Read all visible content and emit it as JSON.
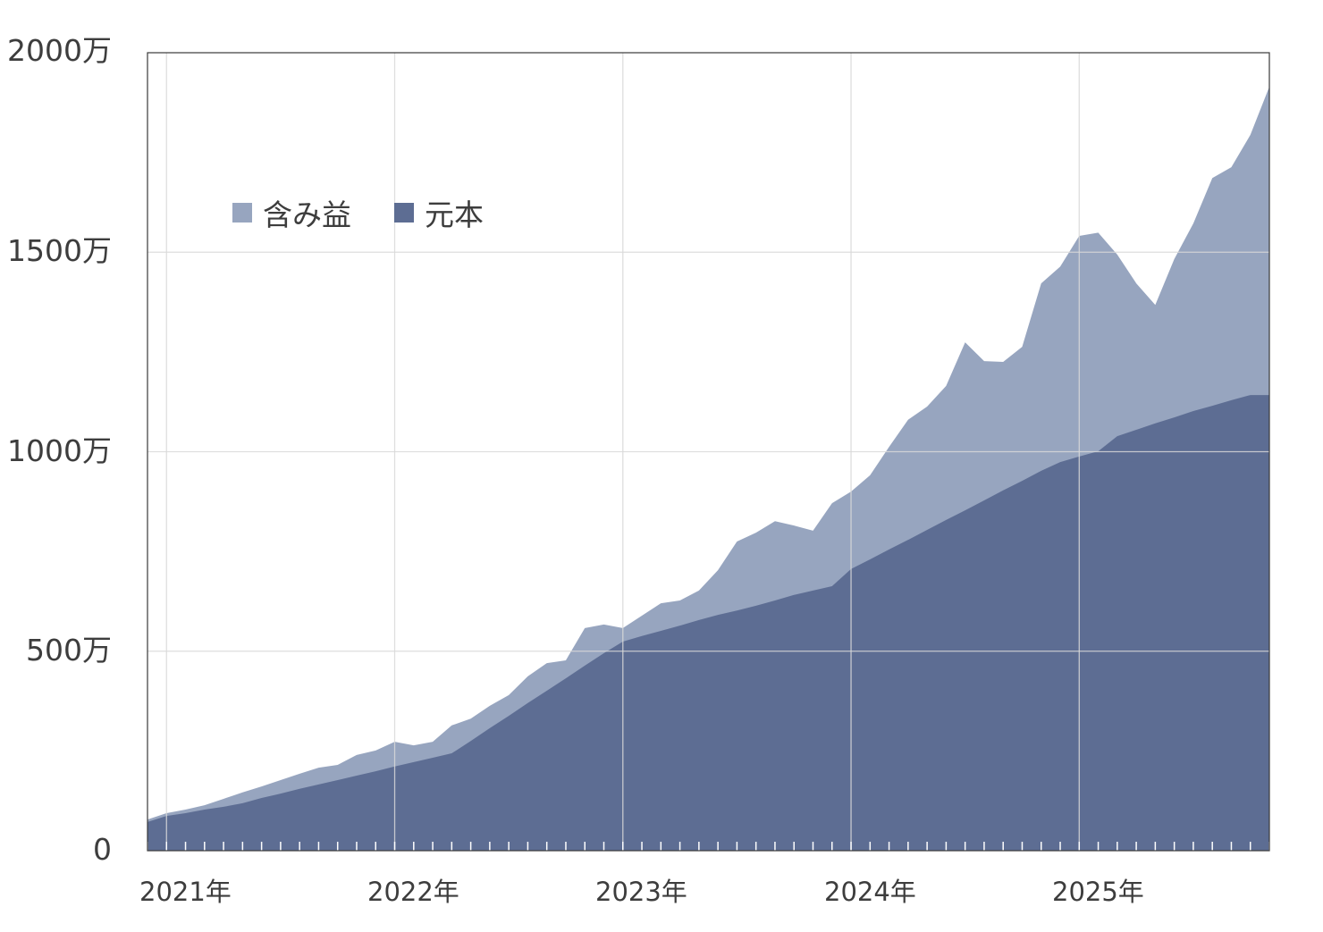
{
  "chart_data": {
    "type": "area",
    "stacked": true,
    "title": "",
    "xlabel": "",
    "ylabel": "",
    "ylim": [
      0,
      2000
    ],
    "y_unit": "万",
    "yticks": [
      {
        "value": 0,
        "label": "0"
      },
      {
        "value": 500,
        "label": "500万"
      },
      {
        "value": 1000,
        "label": "1000万"
      },
      {
        "value": 1500,
        "label": "1500万"
      },
      {
        "value": 2000,
        "label": "2000万"
      }
    ],
    "xticks": [
      {
        "index": 1,
        "label": "2021年"
      },
      {
        "index": 13,
        "label": "2022年"
      },
      {
        "index": 25,
        "label": "2023年"
      },
      {
        "index": 37,
        "label": "2024年"
      },
      {
        "index": 49,
        "label": "2025年"
      }
    ],
    "x": [
      "2020-12",
      "2021-01",
      "2021-02",
      "2021-03",
      "2021-04",
      "2021-05",
      "2021-06",
      "2021-07",
      "2021-08",
      "2021-09",
      "2021-10",
      "2021-11",
      "2021-12",
      "2022-01",
      "2022-02",
      "2022-03",
      "2022-04",
      "2022-05",
      "2022-06",
      "2022-07",
      "2022-08",
      "2022-09",
      "2022-10",
      "2022-11",
      "2022-12",
      "2023-01",
      "2023-02",
      "2023-03",
      "2023-04",
      "2023-05",
      "2023-06",
      "2023-07",
      "2023-08",
      "2023-09",
      "2023-10",
      "2023-11",
      "2023-12",
      "2024-01",
      "2024-02",
      "2024-03",
      "2024-04",
      "2024-05",
      "2024-06",
      "2024-07",
      "2024-08",
      "2024-09",
      "2024-10",
      "2024-11",
      "2024-12",
      "2025-01",
      "2025-02",
      "2025-03",
      "2025-04",
      "2025-05",
      "2025-06",
      "2025-07",
      "2025-08",
      "2025-09",
      "2025-10",
      "2025-11"
    ],
    "series": [
      {
        "name": "元本",
        "color": "#5d6d93",
        "values": [
          72,
          87,
          94,
          103,
          110,
          119,
          132,
          143,
          155,
          166,
          177,
          188,
          199,
          211,
          222,
          233,
          244,
          275,
          307,
          338,
          370,
          401,
          432,
          464,
          495,
          524,
          538,
          551,
          564,
          578,
          591,
          602,
          614,
          627,
          641,
          652,
          663,
          706,
          730,
          755,
          779,
          804,
          829,
          853,
          878,
          903,
          927,
          952,
          974,
          988,
          1001,
          1039,
          1055,
          1071,
          1086,
          1102,
          1115,
          1129,
          1142,
          1142
        ]
      },
      {
        "name": "含み益",
        "color": "#97a5bf",
        "values": [
          6,
          7,
          9,
          11,
          20,
          27,
          29,
          34,
          38,
          42,
          38,
          52,
          52,
          62,
          42,
          40,
          70,
          56,
          56,
          52,
          67,
          69,
          45,
          94,
          72,
          34,
          51,
          69,
          63,
          74,
          112,
          173,
          183,
          199,
          174,
          150,
          208,
          194,
          211,
          257,
          301,
          309,
          336,
          421,
          349,
          322,
          336,
          470,
          490,
          553,
          548,
          455,
          367,
          297,
          397,
          470,
          571,
          584,
          652,
          773
        ]
      }
    ],
    "legend": {
      "position": "upper-left-inside",
      "entries": [
        "含み益",
        "元本"
      ]
    },
    "grid": {
      "x": true,
      "y": true
    }
  },
  "legend": {
    "items": [
      {
        "label": "含み益",
        "color": "#97a5bf"
      },
      {
        "label": "元本",
        "color": "#5d6d93"
      }
    ]
  }
}
